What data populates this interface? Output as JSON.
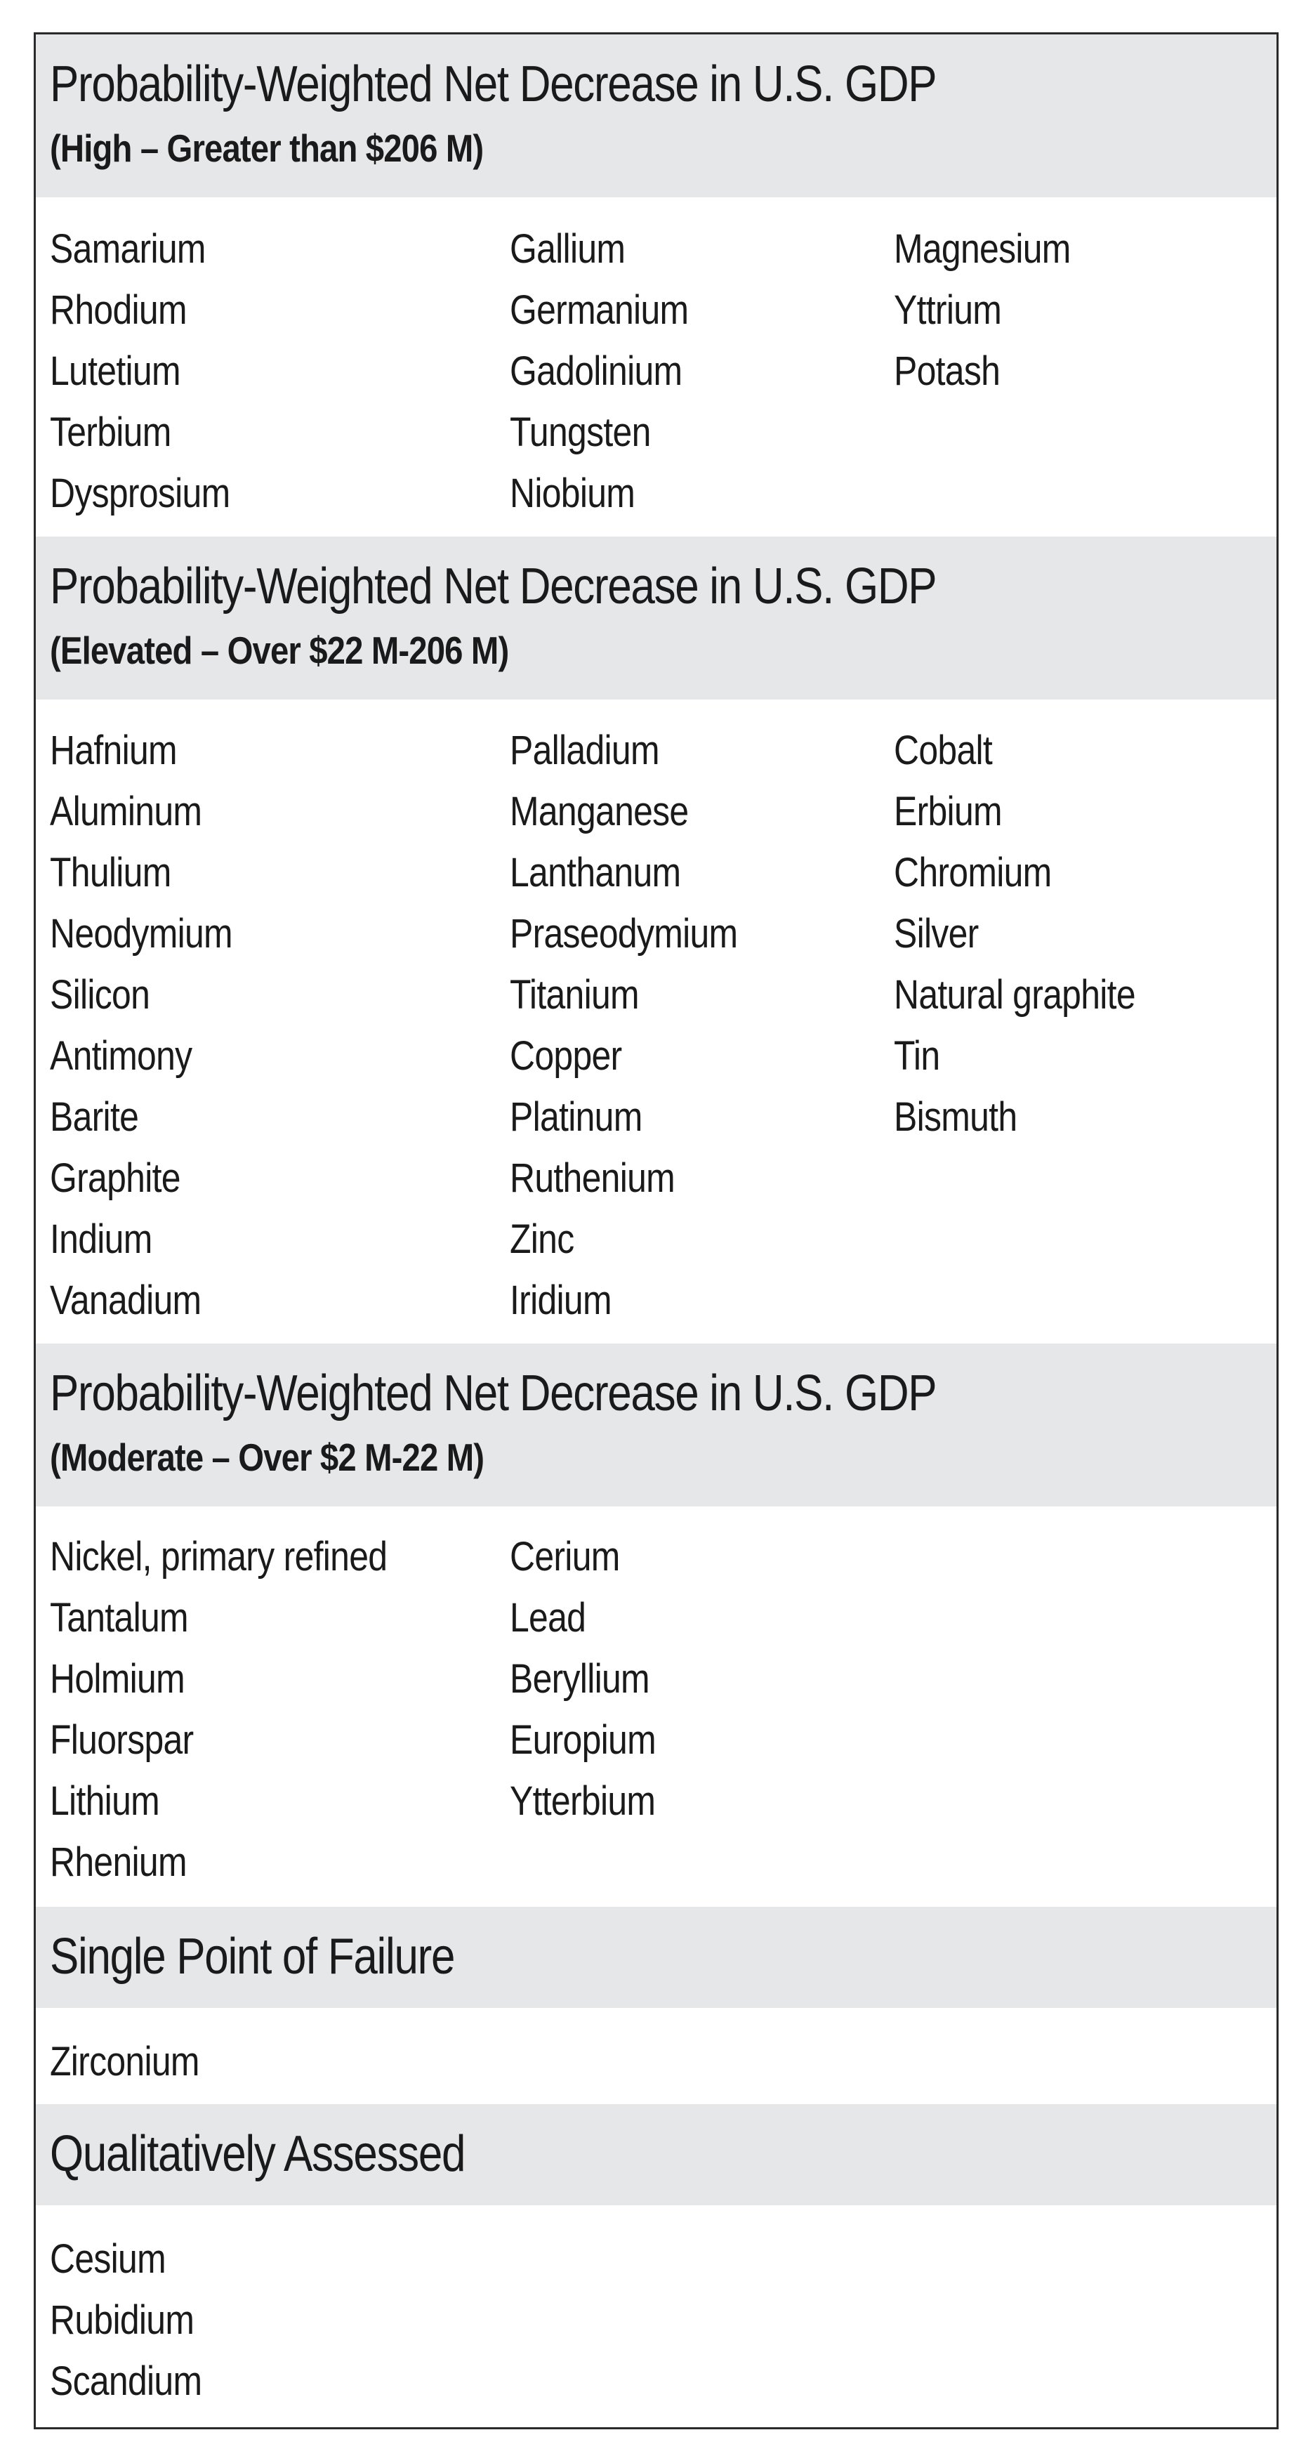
{
  "sections": [
    {
      "heading": "Probability-Weighted Net Decrease in U.S. GDP",
      "subheading": "(High – Greater than $206 M)",
      "columns": [
        [
          "Samarium",
          "Rhodium",
          "Lutetium",
          "Terbium",
          "Dysprosium"
        ],
        [
          "Gallium",
          "Germanium",
          "Gadolinium",
          "Tungsten",
          "Niobium"
        ],
        [
          "Magnesium",
          "Yttrium",
          "Potash"
        ]
      ]
    },
    {
      "heading": "Probability-Weighted Net Decrease in U.S. GDP",
      "subheading": "(Elevated – Over $22 M-206 M)",
      "columns": [
        [
          "Hafnium",
          "Aluminum",
          "Thulium",
          "Neodymium",
          "Silicon",
          "Antimony",
          "Barite",
          "Graphite",
          "Indium",
          "Vanadium"
        ],
        [
          "Palladium",
          "Manganese",
          "Lanthanum",
          "Praseodymium",
          "Titanium",
          "Copper",
          "Platinum",
          "Ruthenium",
          "Zinc",
          "Iridium"
        ],
        [
          "Cobalt",
          "Erbium",
          "Chromium",
          "Silver",
          "Natural graphite",
          "Tin",
          "Bismuth"
        ]
      ]
    },
    {
      "heading": "Probability-Weighted Net Decrease in U.S. GDP",
      "subheading": "(Moderate – Over $2 M-22 M)",
      "columns": [
        [
          "Nickel, primary refined",
          "Tantalum",
          "Holmium",
          "Fluorspar",
          "Lithium",
          "Rhenium"
        ],
        [
          "Cerium",
          "Lead",
          "Beryllium",
          "Europium",
          "Ytterbium"
        ]
      ]
    },
    {
      "heading": "Single Point of Failure",
      "columns": [
        [
          "Zirconium"
        ]
      ]
    },
    {
      "heading": "Qualitatively Assessed",
      "columns": [
        [
          "Cesium",
          "Rubidium",
          "Scandium"
        ]
      ]
    }
  ]
}
